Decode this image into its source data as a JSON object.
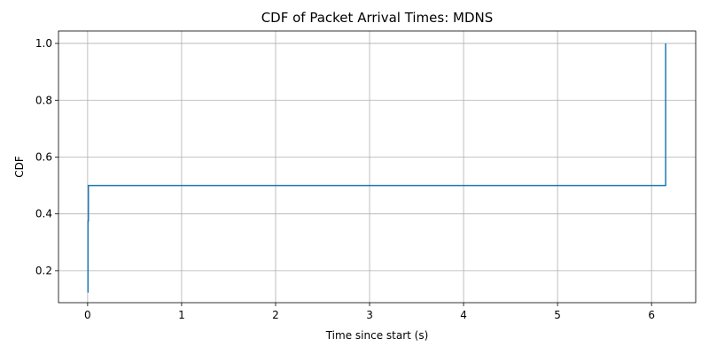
{
  "chart_data": {
    "type": "line",
    "title": "CDF of Packet Arrival Times: MDNS",
    "xlabel": "Time since start (s)",
    "ylabel": "CDF",
    "xlim": [
      -0.31,
      6.47
    ],
    "ylim": [
      0.0875,
      1.0438
    ],
    "xticks": [
      0,
      1,
      2,
      3,
      4,
      5,
      6
    ],
    "xtick_labels": [
      "0",
      "1",
      "2",
      "3",
      "4",
      "5",
      "6"
    ],
    "yticks": [
      0.2,
      0.4,
      0.6,
      0.8,
      1.0
    ],
    "ytick_labels": [
      "0.2",
      "0.4",
      "0.6",
      "0.8",
      "1.0"
    ],
    "grid": true,
    "line_color": "#1f77b4",
    "grid_color": "#b0b0b0",
    "series": [
      {
        "x": [
          0.0,
          0.004,
          0.008,
          6.15
        ],
        "y": [
          0.125,
          0.375,
          0.5,
          1.0
        ]
      }
    ]
  }
}
